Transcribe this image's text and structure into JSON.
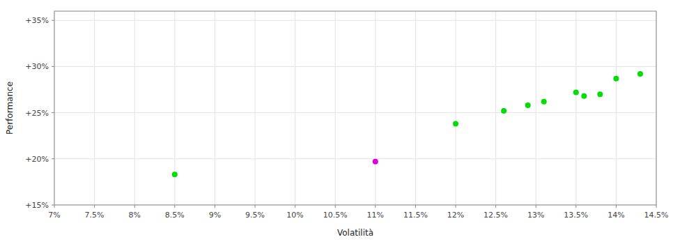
{
  "chart_data": {
    "type": "scatter",
    "xlabel": "Volatilità",
    "ylabel": "Performance",
    "xlim": [
      0.07,
      0.145
    ],
    "ylim": [
      0.15,
      0.36
    ],
    "xticks": [
      {
        "value": 0.07,
        "label": "7%"
      },
      {
        "value": 0.075,
        "label": "7.5%"
      },
      {
        "value": 0.08,
        "label": "8%"
      },
      {
        "value": 0.085,
        "label": "8.5%"
      },
      {
        "value": 0.09,
        "label": "9%"
      },
      {
        "value": 0.095,
        "label": "9.5%"
      },
      {
        "value": 0.1,
        "label": "10%"
      },
      {
        "value": 0.105,
        "label": "10.5%"
      },
      {
        "value": 0.11,
        "label": "11%"
      },
      {
        "value": 0.115,
        "label": "11.5%"
      },
      {
        "value": 0.12,
        "label": "12%"
      },
      {
        "value": 0.125,
        "label": "12.5%"
      },
      {
        "value": 0.13,
        "label": "13%"
      },
      {
        "value": 0.135,
        "label": "13.5%"
      },
      {
        "value": 0.14,
        "label": "14%"
      },
      {
        "value": 0.145,
        "label": "14.5%"
      }
    ],
    "yticks": [
      {
        "value": 0.15,
        "label": "+15%"
      },
      {
        "value": 0.2,
        "label": "+20%"
      },
      {
        "value": 0.25,
        "label": "+25%"
      },
      {
        "value": 0.3,
        "label": "+30%"
      },
      {
        "value": 0.35,
        "label": "+35%"
      }
    ],
    "grid": true,
    "series": [
      {
        "color": "#00dd00",
        "x": [
          0.085,
          0.12,
          0.126,
          0.129,
          0.131,
          0.135,
          0.136,
          0.138,
          0.14,
          0.143
        ],
        "values": [
          0.183,
          0.238,
          0.252,
          0.258,
          0.262,
          0.272,
          0.268,
          0.27,
          0.287,
          0.292
        ]
      },
      {
        "color": "#dd00dd",
        "x": [
          0.11
        ],
        "values": [
          0.197
        ]
      }
    ]
  }
}
